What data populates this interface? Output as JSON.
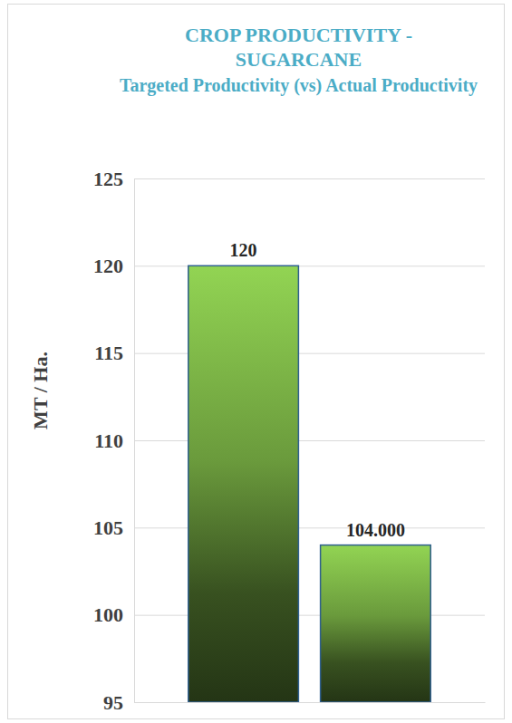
{
  "chart_data": {
    "type": "bar",
    "title": "CROP PRODUCTIVITY - SUGARCANE",
    "subtitle": "Targeted Productivity (vs) Actual Productivity",
    "y_label": "MT / Ha.",
    "categories": [
      null,
      null
    ],
    "values": [
      120,
      104
    ],
    "value_labels": [
      "120",
      "104.000"
    ],
    "colors": [
      "#6a9a3c",
      "#6a9a3c"
    ],
    "ylim": [
      95,
      125
    ],
    "yticks": [
      95,
      100,
      105,
      110,
      115,
      120,
      125
    ],
    "grid": true,
    "data_labels": true
  }
}
